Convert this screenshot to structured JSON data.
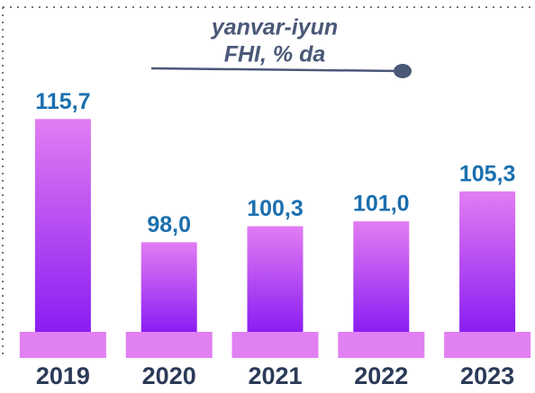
{
  "chart_data": {
    "type": "bar",
    "title": "yanvar-iyun",
    "subtitle": "FHI, % da",
    "categories": [
      "2019",
      "2020",
      "2021",
      "2022",
      "2023"
    ],
    "values": [
      115.7,
      98.0,
      100.3,
      101.0,
      105.3
    ],
    "value_labels": [
      "115,7",
      "98,0",
      "100,3",
      "101,0",
      "105,3"
    ],
    "color": "#a040f0",
    "ylim": [
      85,
      120
    ]
  }
}
